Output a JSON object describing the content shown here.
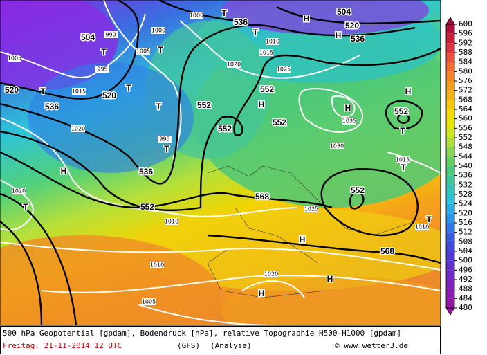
{
  "map": {
    "labels": [
      "504",
      "520",
      "536",
      "520",
      "536",
      "552",
      "552",
      "552",
      "552",
      "552",
      "552",
      "552",
      "568",
      "568",
      "536",
      "520",
      "536",
      "504",
      "H",
      "H",
      "H",
      "H",
      "H",
      "H",
      "H",
      "H",
      "H",
      "T",
      "T",
      "T",
      "T",
      "T",
      "T",
      "T",
      "T",
      "T",
      "T",
      "T",
      "T"
    ],
    "isobars": [
      "1005",
      "1000",
      "995",
      "990",
      "1005",
      "1010",
      "1015",
      "1020",
      "1025",
      "1015",
      "1020",
      "1030",
      "1035",
      "1015",
      "1025",
      "1020",
      "1010",
      "1010",
      "1005",
      "1000",
      "995",
      "1010",
      "1020"
    ]
  },
  "colorbar": {
    "ticks": [
      600,
      596,
      592,
      588,
      584,
      580,
      576,
      572,
      568,
      564,
      560,
      556,
      552,
      548,
      544,
      540,
      536,
      532,
      528,
      524,
      520,
      516,
      512,
      508,
      504,
      500,
      496,
      492,
      488,
      484,
      480
    ]
  },
  "footer": {
    "description": "500 hPa Geopotential [gpdam], Bodendruck [hPa], relative Topographie H500-H1000 [gpdam]",
    "date": "Freitag, 21-11-2014  12 UTC",
    "model": "(GFS)",
    "run": "(Analyse)",
    "credit": "© www.wetter3.de"
  }
}
